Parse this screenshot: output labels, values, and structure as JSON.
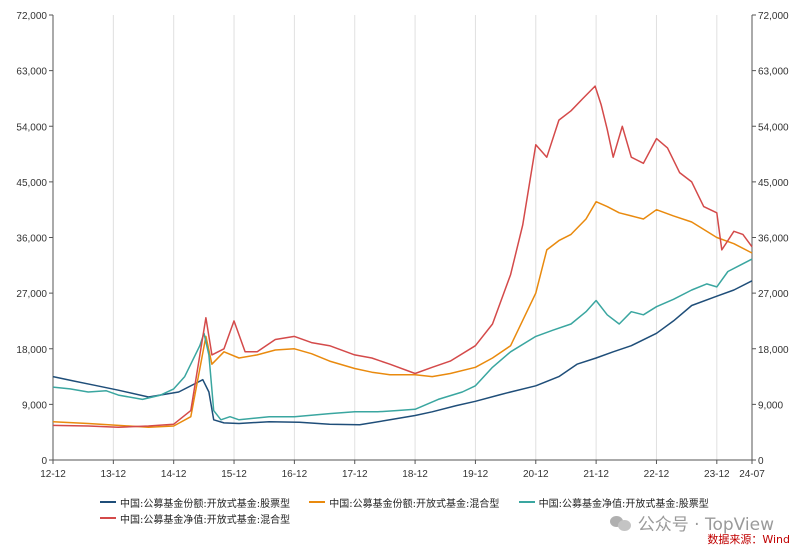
{
  "chart_data": {
    "type": "line",
    "y_ticks": [
      "0",
      "9,000",
      "18,000",
      "27,000",
      "36,000",
      "45,000",
      "54,000",
      "63,000",
      "72,000"
    ],
    "ylim": [
      0,
      72000
    ],
    "y_step": 9000,
    "x_ticks": [
      "12-12",
      "13-12",
      "14-12",
      "15-12",
      "16-12",
      "17-12",
      "18-12",
      "19-12",
      "20-12",
      "21-12",
      "22-12",
      "23-12",
      "24-07"
    ],
    "x_tick_values": [
      2012.917,
      2013.917,
      2014.917,
      2015.917,
      2016.917,
      2017.917,
      2018.917,
      2019.917,
      2020.917,
      2021.917,
      2022.917,
      2023.917,
      2024.5
    ],
    "xlim": [
      2012.917,
      2024.5
    ],
    "grid": {
      "vertical": true,
      "horizontal": false
    },
    "legend_position": "bottom",
    "series": [
      {
        "name": "中国:公募基金份额:开放式基金:股票型",
        "color": "#1f4e79",
        "points": [
          [
            2012.917,
            13500
          ],
          [
            2013.25,
            12800
          ],
          [
            2013.6,
            12100
          ],
          [
            2014.0,
            11300
          ],
          [
            2014.5,
            10200
          ],
          [
            2015.0,
            11000
          ],
          [
            2015.4,
            13000
          ],
          [
            2015.5,
            11000
          ],
          [
            2015.58,
            6500
          ],
          [
            2015.75,
            6000
          ],
          [
            2016.0,
            5900
          ],
          [
            2016.5,
            6200
          ],
          [
            2017.0,
            6100
          ],
          [
            2017.5,
            5800
          ],
          [
            2018.0,
            5700
          ],
          [
            2018.5,
            6500
          ],
          [
            2018.917,
            7200
          ],
          [
            2019.2,
            7800
          ],
          [
            2019.6,
            8800
          ],
          [
            2019.917,
            9500
          ],
          [
            2020.3,
            10500
          ],
          [
            2020.5,
            11000
          ],
          [
            2020.917,
            12000
          ],
          [
            2021.3,
            13500
          ],
          [
            2021.6,
            15500
          ],
          [
            2021.917,
            16500
          ],
          [
            2022.2,
            17500
          ],
          [
            2022.5,
            18500
          ],
          [
            2022.917,
            20500
          ],
          [
            2023.2,
            22500
          ],
          [
            2023.5,
            25000
          ],
          [
            2023.917,
            26500
          ],
          [
            2024.2,
            27500
          ],
          [
            2024.5,
            29000
          ]
        ]
      },
      {
        "name": "中国:公募基金份额:开放式基金:混合型",
        "color": "#e98a0e",
        "points": [
          [
            2012.917,
            6200
          ],
          [
            2013.5,
            5900
          ],
          [
            2014.0,
            5600
          ],
          [
            2014.5,
            5300
          ],
          [
            2014.917,
            5500
          ],
          [
            2015.2,
            7000
          ],
          [
            2015.45,
            20000
          ],
          [
            2015.55,
            15500
          ],
          [
            2015.75,
            17500
          ],
          [
            2016.0,
            16500
          ],
          [
            2016.3,
            17000
          ],
          [
            2016.6,
            17800
          ],
          [
            2016.917,
            18000
          ],
          [
            2017.2,
            17200
          ],
          [
            2017.5,
            16000
          ],
          [
            2017.917,
            14800
          ],
          [
            2018.2,
            14200
          ],
          [
            2018.5,
            13800
          ],
          [
            2018.917,
            13800
          ],
          [
            2019.2,
            13500
          ],
          [
            2019.5,
            14000
          ],
          [
            2019.917,
            15000
          ],
          [
            2020.2,
            16500
          ],
          [
            2020.5,
            18500
          ],
          [
            2020.917,
            27000
          ],
          [
            2021.1,
            34000
          ],
          [
            2021.3,
            35500
          ],
          [
            2021.5,
            36500
          ],
          [
            2021.75,
            39000
          ],
          [
            2021.917,
            41800
          ],
          [
            2022.1,
            41000
          ],
          [
            2022.3,
            40000
          ],
          [
            2022.5,
            39500
          ],
          [
            2022.7,
            39000
          ],
          [
            2022.917,
            40500
          ],
          [
            2023.2,
            39500
          ],
          [
            2023.5,
            38500
          ],
          [
            2023.75,
            37000
          ],
          [
            2023.917,
            36000
          ],
          [
            2024.2,
            35000
          ],
          [
            2024.5,
            33500
          ]
        ]
      },
      {
        "name": "中国:公募基金净值:开放式基金:股票型",
        "color": "#3aa6a0",
        "points": [
          [
            2012.917,
            11800
          ],
          [
            2013.2,
            11500
          ],
          [
            2013.5,
            11000
          ],
          [
            2013.8,
            11200
          ],
          [
            2014.0,
            10500
          ],
          [
            2014.4,
            9800
          ],
          [
            2014.7,
            10500
          ],
          [
            2014.917,
            11500
          ],
          [
            2015.1,
            13500
          ],
          [
            2015.35,
            18500
          ],
          [
            2015.42,
            20500
          ],
          [
            2015.5,
            17000
          ],
          [
            2015.58,
            8000
          ],
          [
            2015.7,
            6500
          ],
          [
            2015.85,
            7000
          ],
          [
            2016.0,
            6500
          ],
          [
            2016.5,
            7000
          ],
          [
            2016.917,
            7000
          ],
          [
            2017.5,
            7500
          ],
          [
            2017.917,
            7800
          ],
          [
            2018.3,
            7800
          ],
          [
            2018.6,
            8000
          ],
          [
            2018.917,
            8200
          ],
          [
            2019.3,
            9800
          ],
          [
            2019.7,
            11000
          ],
          [
            2019.917,
            12000
          ],
          [
            2020.2,
            15000
          ],
          [
            2020.5,
            17500
          ],
          [
            2020.917,
            20000
          ],
          [
            2021.2,
            21000
          ],
          [
            2021.5,
            22000
          ],
          [
            2021.75,
            24000
          ],
          [
            2021.917,
            25800
          ],
          [
            2022.1,
            23500
          ],
          [
            2022.3,
            22000
          ],
          [
            2022.5,
            24000
          ],
          [
            2022.7,
            23500
          ],
          [
            2022.917,
            24800
          ],
          [
            2023.2,
            26000
          ],
          [
            2023.5,
            27500
          ],
          [
            2023.75,
            28500
          ],
          [
            2023.917,
            28000
          ],
          [
            2024.1,
            30500
          ],
          [
            2024.3,
            31500
          ],
          [
            2024.5,
            32500
          ]
        ]
      },
      {
        "name": "中国:公募基金净值:开放式基金:混合型",
        "color": "#d44a4a",
        "points": [
          [
            2012.917,
            5600
          ],
          [
            2013.5,
            5500
          ],
          [
            2014.0,
            5300
          ],
          [
            2014.5,
            5500
          ],
          [
            2014.917,
            5800
          ],
          [
            2015.2,
            8000
          ],
          [
            2015.45,
            23000
          ],
          [
            2015.55,
            17000
          ],
          [
            2015.75,
            18000
          ],
          [
            2015.917,
            22500
          ],
          [
            2016.1,
            17500
          ],
          [
            2016.3,
            17500
          ],
          [
            2016.6,
            19500
          ],
          [
            2016.917,
            20000
          ],
          [
            2017.2,
            19000
          ],
          [
            2017.5,
            18500
          ],
          [
            2017.917,
            17000
          ],
          [
            2018.2,
            16500
          ],
          [
            2018.5,
            15500
          ],
          [
            2018.917,
            14000
          ],
          [
            2019.2,
            15000
          ],
          [
            2019.5,
            16000
          ],
          [
            2019.917,
            18500
          ],
          [
            2020.2,
            22000
          ],
          [
            2020.5,
            30000
          ],
          [
            2020.7,
            38000
          ],
          [
            2020.917,
            51000
          ],
          [
            2021.1,
            49000
          ],
          [
            2021.3,
            55000
          ],
          [
            2021.5,
            56500
          ],
          [
            2021.7,
            58500
          ],
          [
            2021.9,
            60500
          ],
          [
            2022.0,
            57500
          ],
          [
            2022.1,
            53500
          ],
          [
            2022.2,
            49000
          ],
          [
            2022.35,
            54000
          ],
          [
            2022.5,
            49000
          ],
          [
            2022.7,
            48000
          ],
          [
            2022.917,
            52000
          ],
          [
            2023.1,
            50500
          ],
          [
            2023.3,
            46500
          ],
          [
            2023.5,
            45000
          ],
          [
            2023.7,
            41000
          ],
          [
            2023.917,
            40000
          ],
          [
            2024.0,
            34000
          ],
          [
            2024.2,
            37000
          ],
          [
            2024.35,
            36500
          ],
          [
            2024.5,
            34500
          ]
        ]
      }
    ]
  },
  "watermark": {
    "text": "公众号 · TopView"
  },
  "source": {
    "text": "数据来源：Wind"
  }
}
